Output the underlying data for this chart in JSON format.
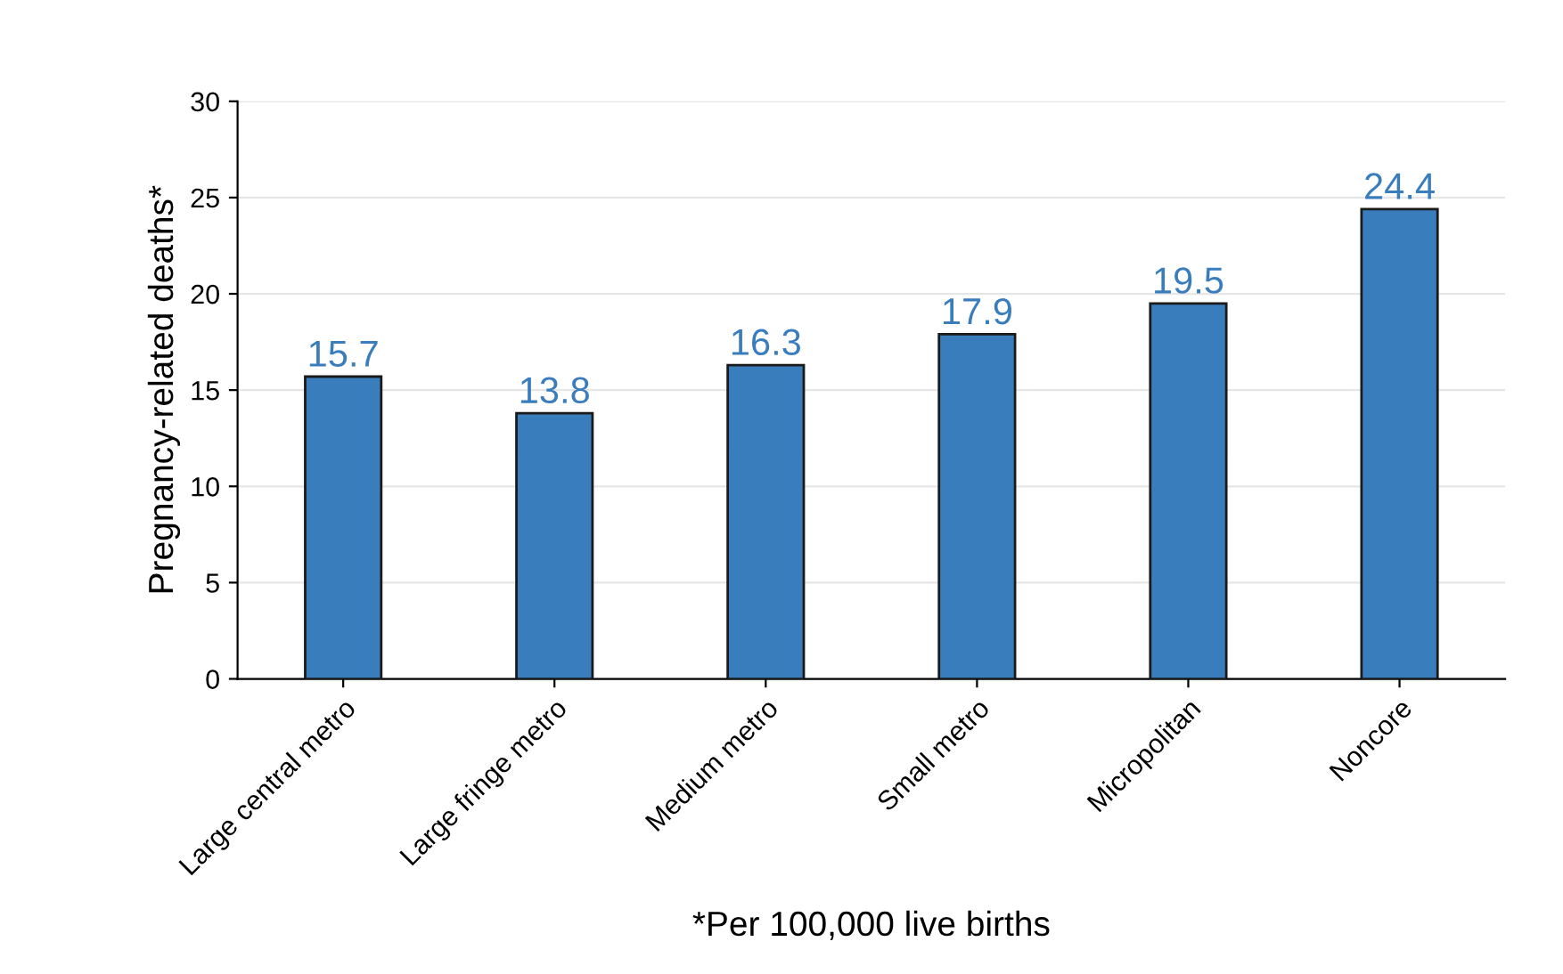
{
  "chart_data": {
    "type": "bar",
    "xlabel": "*Per 100,000 live births",
    "ylabel": "Pregnancy-related deaths*",
    "categories": [
      "Large central metro",
      "Large fringe metro",
      "Medium metro",
      "Small metro",
      "Micropolitan",
      "Noncore"
    ],
    "values": [
      15.7,
      13.8,
      16.3,
      17.9,
      19.5,
      24.4
    ],
    "color": "#3a7dbd",
    "data_labels": true,
    "ylim": [
      0,
      30
    ],
    "yticks": [
      0,
      5,
      10,
      15,
      20,
      25,
      30
    ],
    "grid": "y"
  }
}
